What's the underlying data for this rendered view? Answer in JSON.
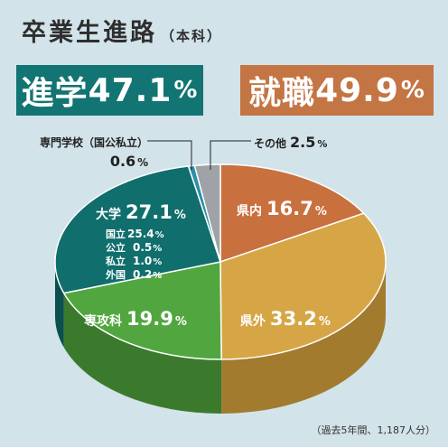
{
  "page": {
    "title": "卒業生進路",
    "subtitle": "（本科）",
    "footnote": "（過去5年間、1,187人分）"
  },
  "badges": {
    "advance": {
      "label": "進学",
      "value": "47.1",
      "unit": "%"
    },
    "employ": {
      "label": "就職",
      "value": "49.9",
      "unit": "%"
    }
  },
  "colors": {
    "background": "#d2e3ea",
    "advance": "#127473",
    "employ": "#c47544"
  },
  "chart_data": {
    "type": "pie",
    "unit": "%",
    "slices": [
      {
        "name": "県内",
        "value": 16.7,
        "color": "#c9703f",
        "side": "#94522d"
      },
      {
        "name": "県外",
        "value": 33.2,
        "color": "#d6a646",
        "side": "#a27b2f"
      },
      {
        "name": "専攻科",
        "value": 19.9,
        "color": "#52a640",
        "side": "#3b7a2d"
      },
      {
        "name": "大学",
        "value": 27.1,
        "color": "#106e6d",
        "side": "#0b4f4e"
      },
      {
        "name": "専門学校（国公私立）",
        "value": 0.6,
        "color": "#2a8fa8",
        "side": "#1d6778"
      },
      {
        "name": "その他",
        "value": 2.5,
        "color": "#9fa3a7",
        "side": "#767a7e"
      }
    ],
    "university_breakdown": [
      {
        "name": "国立",
        "value": "25.4"
      },
      {
        "name": "公立",
        "value": "0.5"
      },
      {
        "name": "私立",
        "value": "1.0"
      },
      {
        "name": "外国",
        "value": "0.2"
      }
    ]
  }
}
